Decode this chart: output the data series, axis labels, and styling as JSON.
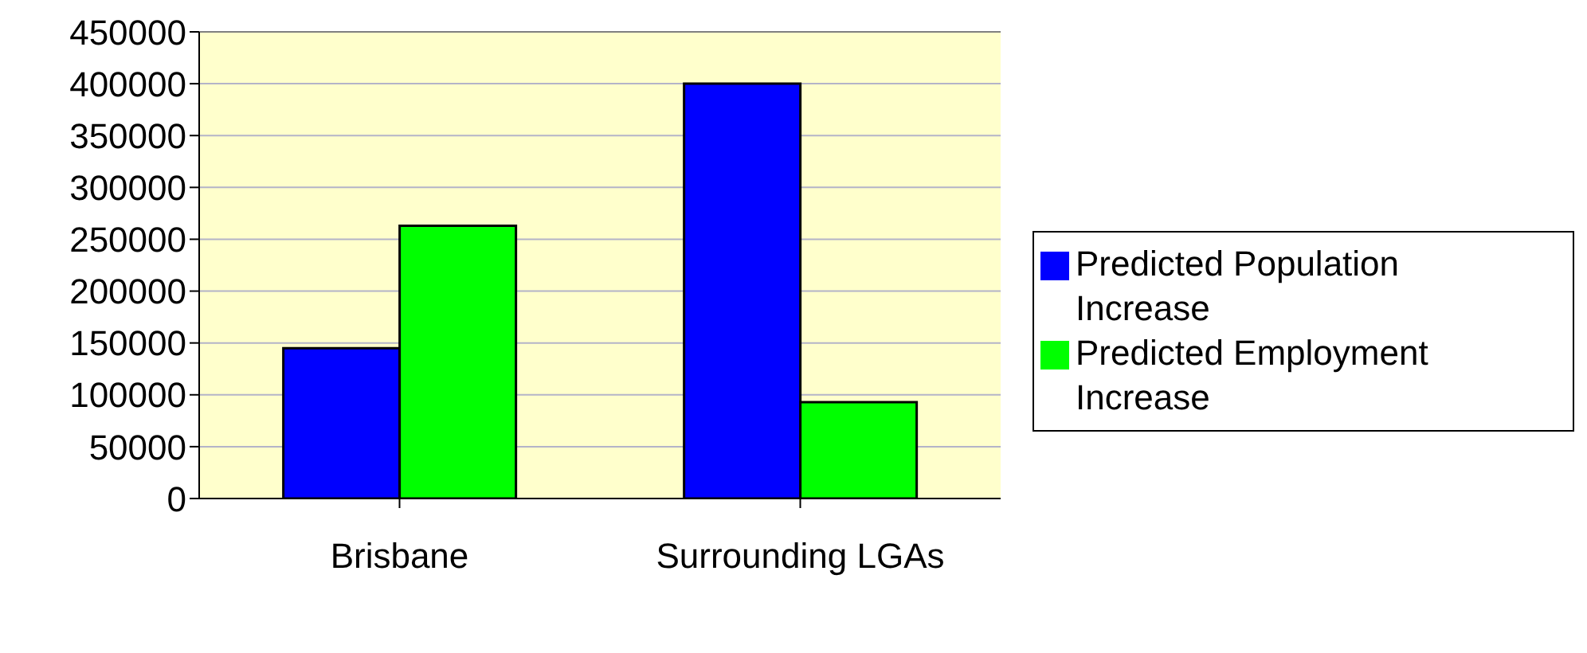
{
  "chart_data": {
    "type": "bar",
    "categories": [
      "Brisbane",
      "Surrounding LGAs"
    ],
    "series": [
      {
        "name": "Predicted Population Increase",
        "color": "#0000ff",
        "values": [
          145000,
          400000
        ]
      },
      {
        "name": "Predicted Employment Increase",
        "color": "#00ff00",
        "values": [
          263000,
          93000
        ]
      }
    ],
    "ylim": [
      0,
      450000
    ],
    "yticks": [
      0,
      50000,
      100000,
      150000,
      200000,
      250000,
      300000,
      350000,
      400000,
      450000
    ],
    "grid": "y",
    "legend": "right"
  }
}
